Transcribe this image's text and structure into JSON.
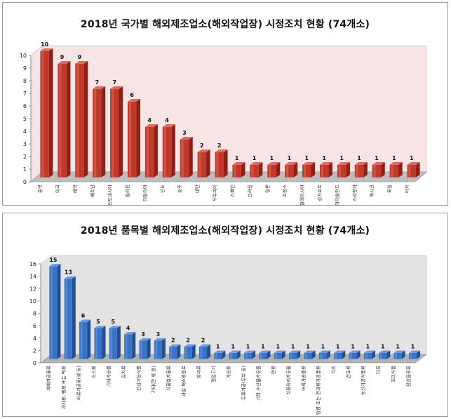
{
  "chart_data": [
    {
      "type": "bar",
      "title": "2018년 국가별 해외제조업소(해외작업장) 시정조치 현황 (74개소)",
      "xlabel": "",
      "ylabel": "",
      "ylim": [
        0,
        10
      ],
      "yticks": [
        0,
        1,
        2,
        3,
        4,
        5,
        6,
        7,
        8,
        9,
        10
      ],
      "grid": false,
      "legend": "none",
      "categories": [
        "중국",
        "미국",
        "태국",
        "베트남",
        "인도네시아",
        "필리핀",
        "이탈리아",
        "인도",
        "호주",
        "대만",
        "우루과이",
        "스페인",
        "브라질",
        "일본",
        "프랑스",
        "말레이시아",
        "싱가포르",
        "아이슬란드",
        "스리랑카",
        "멕시코",
        "독일",
        "터키"
      ],
      "values": [
        10,
        9,
        9,
        7,
        7,
        6,
        4,
        4,
        3,
        2,
        2,
        1,
        1,
        1,
        1,
        1,
        1,
        1,
        1,
        1,
        1,
        1
      ],
      "colors": {
        "bar": "#c0392b",
        "bar_light": "#e06a5e",
        "bar_dark": "#8c2119",
        "wall": "#f7e4e4",
        "floor": "#bdbdbd"
      }
    },
    {
      "type": "bar",
      "title": "2018년 품목별 해외제조업소(해외작업장) 시정조치 현황 (74개소)",
      "xlabel": "",
      "ylabel": "",
      "ylim": [
        0,
        16
      ],
      "yticks": [
        0,
        2,
        4,
        6,
        8,
        10,
        12,
        14,
        16
      ],
      "grid": false,
      "legend": "none",
      "categories": [
        "과채가공품류",
        "과자류, 빵류 또는 떡류",
        "어류가공품(생 등)",
        "소스류",
        "기타가공품",
        "김치류",
        "건강기능식품",
        "기타(한 류 등)",
        "식품첨가물류",
        "과일·채소류음료",
        "빙과류",
        "절임고기",
        "가공류",
        "두류가공(두부 등)",
        "기타 수산물가공품",
        "면류",
        "식용유지가공품",
        "어육가공품류",
        "땅콩 또는 견과류가공품류",
        "식초",
        "건포류",
        "농산가공식품류",
        "다류",
        "조미식품",
        "탄산음료류"
      ],
      "values": [
        15,
        13,
        6,
        5,
        5,
        4,
        3,
        3,
        2,
        2,
        2,
        1,
        1,
        1,
        1,
        1,
        1,
        1,
        1,
        1,
        1,
        1,
        1,
        1,
        1
      ],
      "colors": {
        "bar": "#3b72c4",
        "bar_light": "#6b9ae0",
        "bar_dark": "#234f8f",
        "wall": "#e3e3e3",
        "floor": "#b3b3b3"
      }
    }
  ]
}
